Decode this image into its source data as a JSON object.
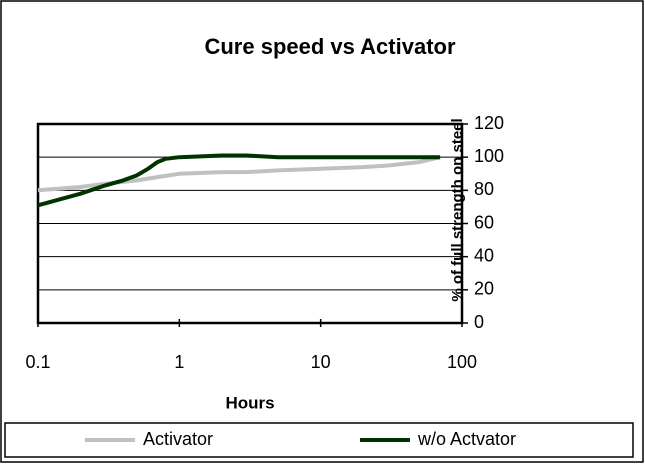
{
  "chart_data": {
    "type": "line",
    "title": "Cure speed vs Activator",
    "xlabel": "Hours",
    "ylabel": "% of full strength on steel",
    "xscale": "log",
    "xlim": [
      0.1,
      100
    ],
    "xticks": [
      0.1,
      1,
      10,
      100
    ],
    "ylim": [
      0,
      120
    ],
    "yticks": [
      0,
      20,
      40,
      60,
      80,
      100,
      120
    ],
    "grid": true,
    "series": [
      {
        "name": "Activator",
        "color": "#c0c0c0",
        "x": [
          0.1,
          0.2,
          0.3,
          0.5,
          0.7,
          1,
          2,
          3,
          5,
          10,
          20,
          30,
          50,
          70
        ],
        "values": [
          80,
          82,
          84,
          86,
          88,
          90,
          91,
          91,
          92,
          93,
          94,
          95,
          97,
          100
        ]
      },
      {
        "name": "w/o Actvator",
        "color": "#003300",
        "x": [
          0.1,
          0.2,
          0.3,
          0.4,
          0.5,
          0.6,
          0.7,
          0.8,
          1,
          2,
          3,
          5,
          10,
          30,
          70
        ],
        "values": [
          71,
          78,
          83,
          86,
          89,
          93,
          97,
          99,
          100,
          101,
          101,
          100,
          100,
          100,
          100
        ]
      }
    ],
    "legend": "bottom"
  }
}
